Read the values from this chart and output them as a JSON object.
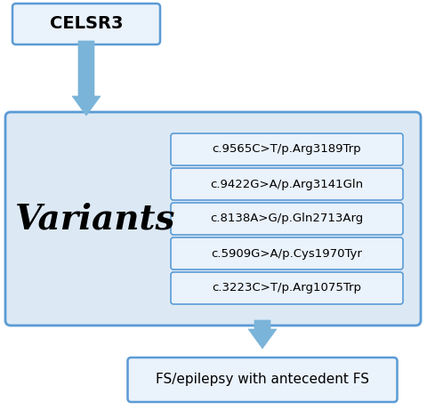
{
  "title_box": "CELSR3",
  "main_label": "Variants",
  "variants": [
    "c.3223C>T/p.Arg1075Trp",
    "c.5909G>A/p.Cys1970Tyr",
    "c.8138A>G/p.Gln2713Arg",
    "c.9422G>A/p.Arg3141Gln",
    "c.9565C>T/p.Arg3189Trp"
  ],
  "bottom_box": "FS/epilepsy with antecedent FS",
  "bg_color": "#ffffff",
  "box_fill_light": "#ccdcee",
  "box_fill_lighter": "#dce9f5",
  "box_fill_lightest": "#eaf2fb",
  "box_edge": "#5b9bd5",
  "arrow_color": "#7ab4d8",
  "text_color": "#000000",
  "fig_w": 4.8,
  "fig_h": 4.7,
  "dpi": 100
}
